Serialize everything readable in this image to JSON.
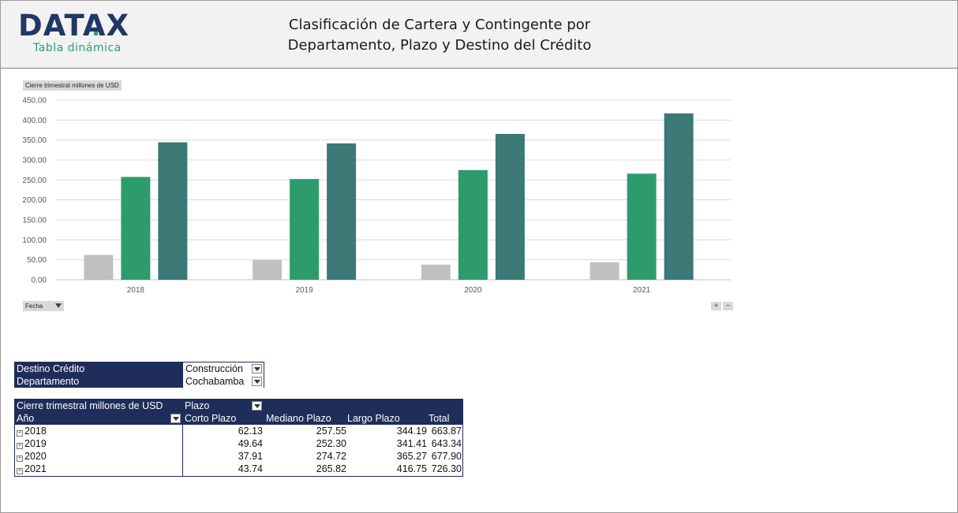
{
  "header": {
    "logo_text": "DATAX",
    "logo_subtitle": "Tabla dinámica",
    "title_line1": "Clasificación de Cartera y Contingente por",
    "title_line2": "Departamento, Plazo y Destino del Crédito"
  },
  "chart_field_label": "Cierre trimestral millones  de USD",
  "chart_filter_button": "Fecha",
  "zoom": {
    "plus": "+",
    "minus": "−"
  },
  "colors": {
    "corto": "#c0c0c0",
    "mediano": "#2e9b6c",
    "largo": "#3b7876",
    "navy": "#1f2d5a"
  },
  "chart_data": {
    "type": "bar",
    "categories": [
      "2018",
      "2019",
      "2020",
      "2021"
    ],
    "series": [
      {
        "values": [
          62.13,
          49.64,
          37.91,
          43.74
        ]
      },
      {
        "values": [
          257.55,
          252.3,
          274.72,
          265.82
        ]
      },
      {
        "values": [
          344.19,
          341.41,
          365.27,
          416.75
        ]
      }
    ],
    "ylim": [
      0,
      450
    ],
    "yticks": [
      "0.00",
      "50.00",
      "100.00",
      "150.00",
      "200.00",
      "250.00",
      "300.00",
      "350.00",
      "400.00",
      "450.00"
    ],
    "grid": true,
    "legend": "none"
  },
  "filters": [
    {
      "key": "Destino Crédito",
      "value": "Construcción"
    },
    {
      "key": "Departamento",
      "value": "Cochabamba"
    }
  ],
  "pivot": {
    "measure": "Cierre trimestral millones de USD",
    "column_field": "Plazo",
    "row_field": "Año",
    "columns": [
      "Corto Plazo",
      "Mediano Plazo",
      "Largo Plazo",
      "Total"
    ],
    "rows": [
      {
        "label": "2018",
        "values": [
          "62.13",
          "257.55",
          "344.19",
          "663.87"
        ]
      },
      {
        "label": "2019",
        "values": [
          "49.64",
          "252.30",
          "341.41",
          "643.34"
        ]
      },
      {
        "label": "2020",
        "values": [
          "37.91",
          "274.72",
          "365.27",
          "677.90"
        ]
      },
      {
        "label": "2021",
        "values": [
          "43.74",
          "265.82",
          "416.75",
          "726.30"
        ]
      }
    ]
  }
}
